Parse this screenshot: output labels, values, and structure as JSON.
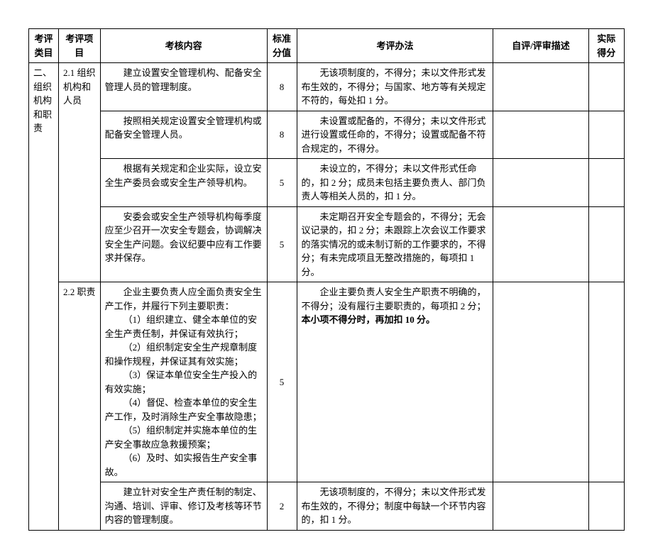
{
  "headers": {
    "category": "考评类目",
    "item": "考评项目",
    "content": "考核内容",
    "standard_score": "标准分值",
    "method": "考评办法",
    "self_review": "自评/评审描述",
    "actual_score": "实际得分"
  },
  "category": "二、组织机构和职责",
  "items": {
    "item1": "2.1 组织机构和人员",
    "item2": "2.2 职责"
  },
  "rows": [
    {
      "content": "建立设置安全管理机构、配备安全管理人员的管理制度。",
      "score": "8",
      "method": "无该项制度的，不得分；未以文件形式发布生效的，不得分；与国家、地方等有关规定不符的，每处扣 1 分。"
    },
    {
      "content": "按照相关规定设置安全管理机构或配备安全管理人员。",
      "score": "8",
      "method": "未设置或配备的，不得分；未以文件形式进行设置或任命的，不得分；设置或配备不符合规定的，不得分。"
    },
    {
      "content": "根据有关规定和企业实际，设立安全生产委员会或安全生产领导机构。",
      "score": "5",
      "method": "未设立的，不得分；未以文件形式任命的，扣 2 分；成员未包括主要负责人、部门负责人等相关人员的，扣 1 分。"
    },
    {
      "content": "安委会或安全生产领导机构每季度应至少召开一次安全专题会，协调解决安全生产问题。会议纪要中应有工作要求并保存。",
      "score": "5",
      "method": "未定期召开安全专题会的，不得分；无会议记录的，扣 2 分；未跟踪上次会议工作要求的落实情况的或未制订新的工作要求的，不得分；有未完成项且无整改措施的，每项扣 1 分。"
    },
    {
      "content_parts": {
        "p1": "企业主要负责人应全面负责安全生产工作，并履行下列主要职责：",
        "p2": "（1）组织建立、健全本单位的安全生产责任制，并保证有效执行；",
        "p3": "（2）组织制定安全生产规章制度和操作规程，并保证其有效实施；",
        "p4": "（3）保证本单位安全生产投入的有效实施；",
        "p5": "（4）督促、检查本单位的安全生产工作，及时消除生产安全事故隐患；",
        "p6": "（5）组织制定并实施本单位的生产安全事故应急救援预案；",
        "p7": "（6）及时、如实报告生产安全事故。"
      },
      "score": "5",
      "method_parts": {
        "m1": "企业主要负责人安全生产职责不明确的，不得分；没有履行主要职责的，每项扣 2 分；",
        "m2": "本小项不得分时，再加扣 10 分。"
      }
    },
    {
      "content": "建立针对安全生产责任制的制定、沟通、培训、评审、修订及考核等环节内容的管理制度。",
      "score": "2",
      "method": "无该项制度的，不得分；未以文件形式发布生效的，不得分；制度中每缺一个环节内容的，扣 1 分。"
    }
  ]
}
